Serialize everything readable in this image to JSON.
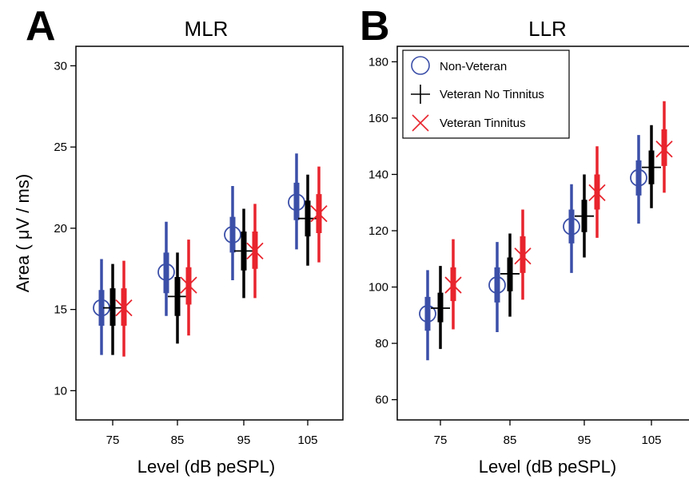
{
  "figure": {
    "ylabel": "Area ( μV / ms)"
  },
  "legend": {
    "items": [
      {
        "label": "Non-Veteran",
        "marker": "circle",
        "color": "#3b4fa8"
      },
      {
        "label": "Veteran No Tinnitus",
        "marker": "plus",
        "color": "#000000"
      },
      {
        "label": "Veteran Tinnitus",
        "marker": "x",
        "color": "#e8242d"
      }
    ]
  },
  "chart_data": [
    {
      "type": "scatter",
      "panel": "A",
      "title": "MLR",
      "xlabel": "Level (dB peSPL)",
      "ylabel": "Area ( μV / ms)",
      "categories": [
        "75",
        "85",
        "95",
        "105"
      ],
      "ylim": [
        8.2,
        31.2
      ],
      "yticks": [
        "10",
        "15",
        "20",
        "25",
        "30"
      ],
      "grid": false,
      "series": [
        {
          "name": "Non-Veteran",
          "color": "#3b4fa8",
          "marker": "circle",
          "values": [
            15.1,
            17.3,
            19.6,
            21.6
          ],
          "inner": [
            [
              14.0,
              16.2
            ],
            [
              16.0,
              18.5
            ],
            [
              18.5,
              20.7
            ],
            [
              20.5,
              22.8
            ]
          ],
          "outer": [
            [
              12.2,
              18.1
            ],
            [
              14.6,
              20.4
            ],
            [
              16.8,
              22.6
            ],
            [
              18.7,
              24.6
            ]
          ]
        },
        {
          "name": "Veteran No Tinnitus",
          "color": "#000000",
          "marker": "plus",
          "values": [
            15.1,
            15.8,
            18.6,
            20.6
          ],
          "inner": [
            [
              14.0,
              16.3
            ],
            [
              14.6,
              17.0
            ],
            [
              17.4,
              19.8
            ],
            [
              19.5,
              21.7
            ]
          ],
          "outer": [
            [
              12.2,
              17.8
            ],
            [
              12.9,
              18.5
            ],
            [
              15.7,
              21.2
            ],
            [
              17.7,
              23.3
            ]
          ]
        },
        {
          "name": "Veteran Tinnitus",
          "color": "#e8242d",
          "marker": "x",
          "values": [
            15.1,
            16.5,
            18.6,
            20.9
          ],
          "inner": [
            [
              14.0,
              16.3
            ],
            [
              15.3,
              17.6
            ],
            [
              17.5,
              19.8
            ],
            [
              19.7,
              22.1
            ]
          ],
          "outer": [
            [
              12.1,
              18.0
            ],
            [
              13.4,
              19.3
            ],
            [
              15.7,
              21.5
            ],
            [
              17.9,
              23.8
            ]
          ]
        }
      ]
    },
    {
      "type": "scatter",
      "panel": "B",
      "title": "LLR",
      "xlabel": "Level (dB peSPL)",
      "ylabel": "",
      "categories": [
        "75",
        "85",
        "95",
        "105"
      ],
      "ylim": [
        52.8,
        185.5
      ],
      "yticks": [
        "60",
        "80",
        "100",
        "120",
        "140",
        "160",
        "180"
      ],
      "grid": false,
      "legend_position": "top-left",
      "series": [
        {
          "name": "Non-Veteran",
          "color": "#3b4fa8",
          "marker": "circle",
          "values": [
            90.5,
            100.7,
            121.5,
            138.8
          ],
          "inner": [
            [
              84.5,
              96.5
            ],
            [
              94.5,
              107.0
            ],
            [
              115.5,
              127.5
            ],
            [
              132.5,
              145.0
            ]
          ],
          "outer": [
            [
              74.0,
              106.0
            ],
            [
              84.0,
              116.0
            ],
            [
              105.0,
              136.5
            ],
            [
              122.5,
              154.0
            ]
          ]
        },
        {
          "name": "Veteran No Tinnitus",
          "color": "#000000",
          "marker": "plus",
          "values": [
            92.5,
            104.7,
            125.2,
            142.5
          ],
          "inner": [
            [
              87.5,
              98.0
            ],
            [
              98.5,
              110.5
            ],
            [
              119.5,
              131.0
            ],
            [
              136.5,
              148.5
            ]
          ],
          "outer": [
            [
              78.0,
              107.5
            ],
            [
              89.5,
              119.0
            ],
            [
              110.5,
              140.0
            ],
            [
              128.0,
              157.5
            ]
          ]
        },
        {
          "name": "Veteran Tinnitus",
          "color": "#e8242d",
          "marker": "x",
          "values": [
            100.7,
            111.0,
            133.5,
            149.0
          ],
          "inner": [
            [
              95.0,
              107.0
            ],
            [
              105.0,
              118.0
            ],
            [
              127.5,
              140.0
            ],
            [
              143.0,
              156.0
            ]
          ],
          "outer": [
            [
              85.0,
              117.0
            ],
            [
              95.5,
              127.5
            ],
            [
              117.5,
              150.0
            ],
            [
              133.5,
              166.0
            ]
          ]
        }
      ]
    }
  ]
}
